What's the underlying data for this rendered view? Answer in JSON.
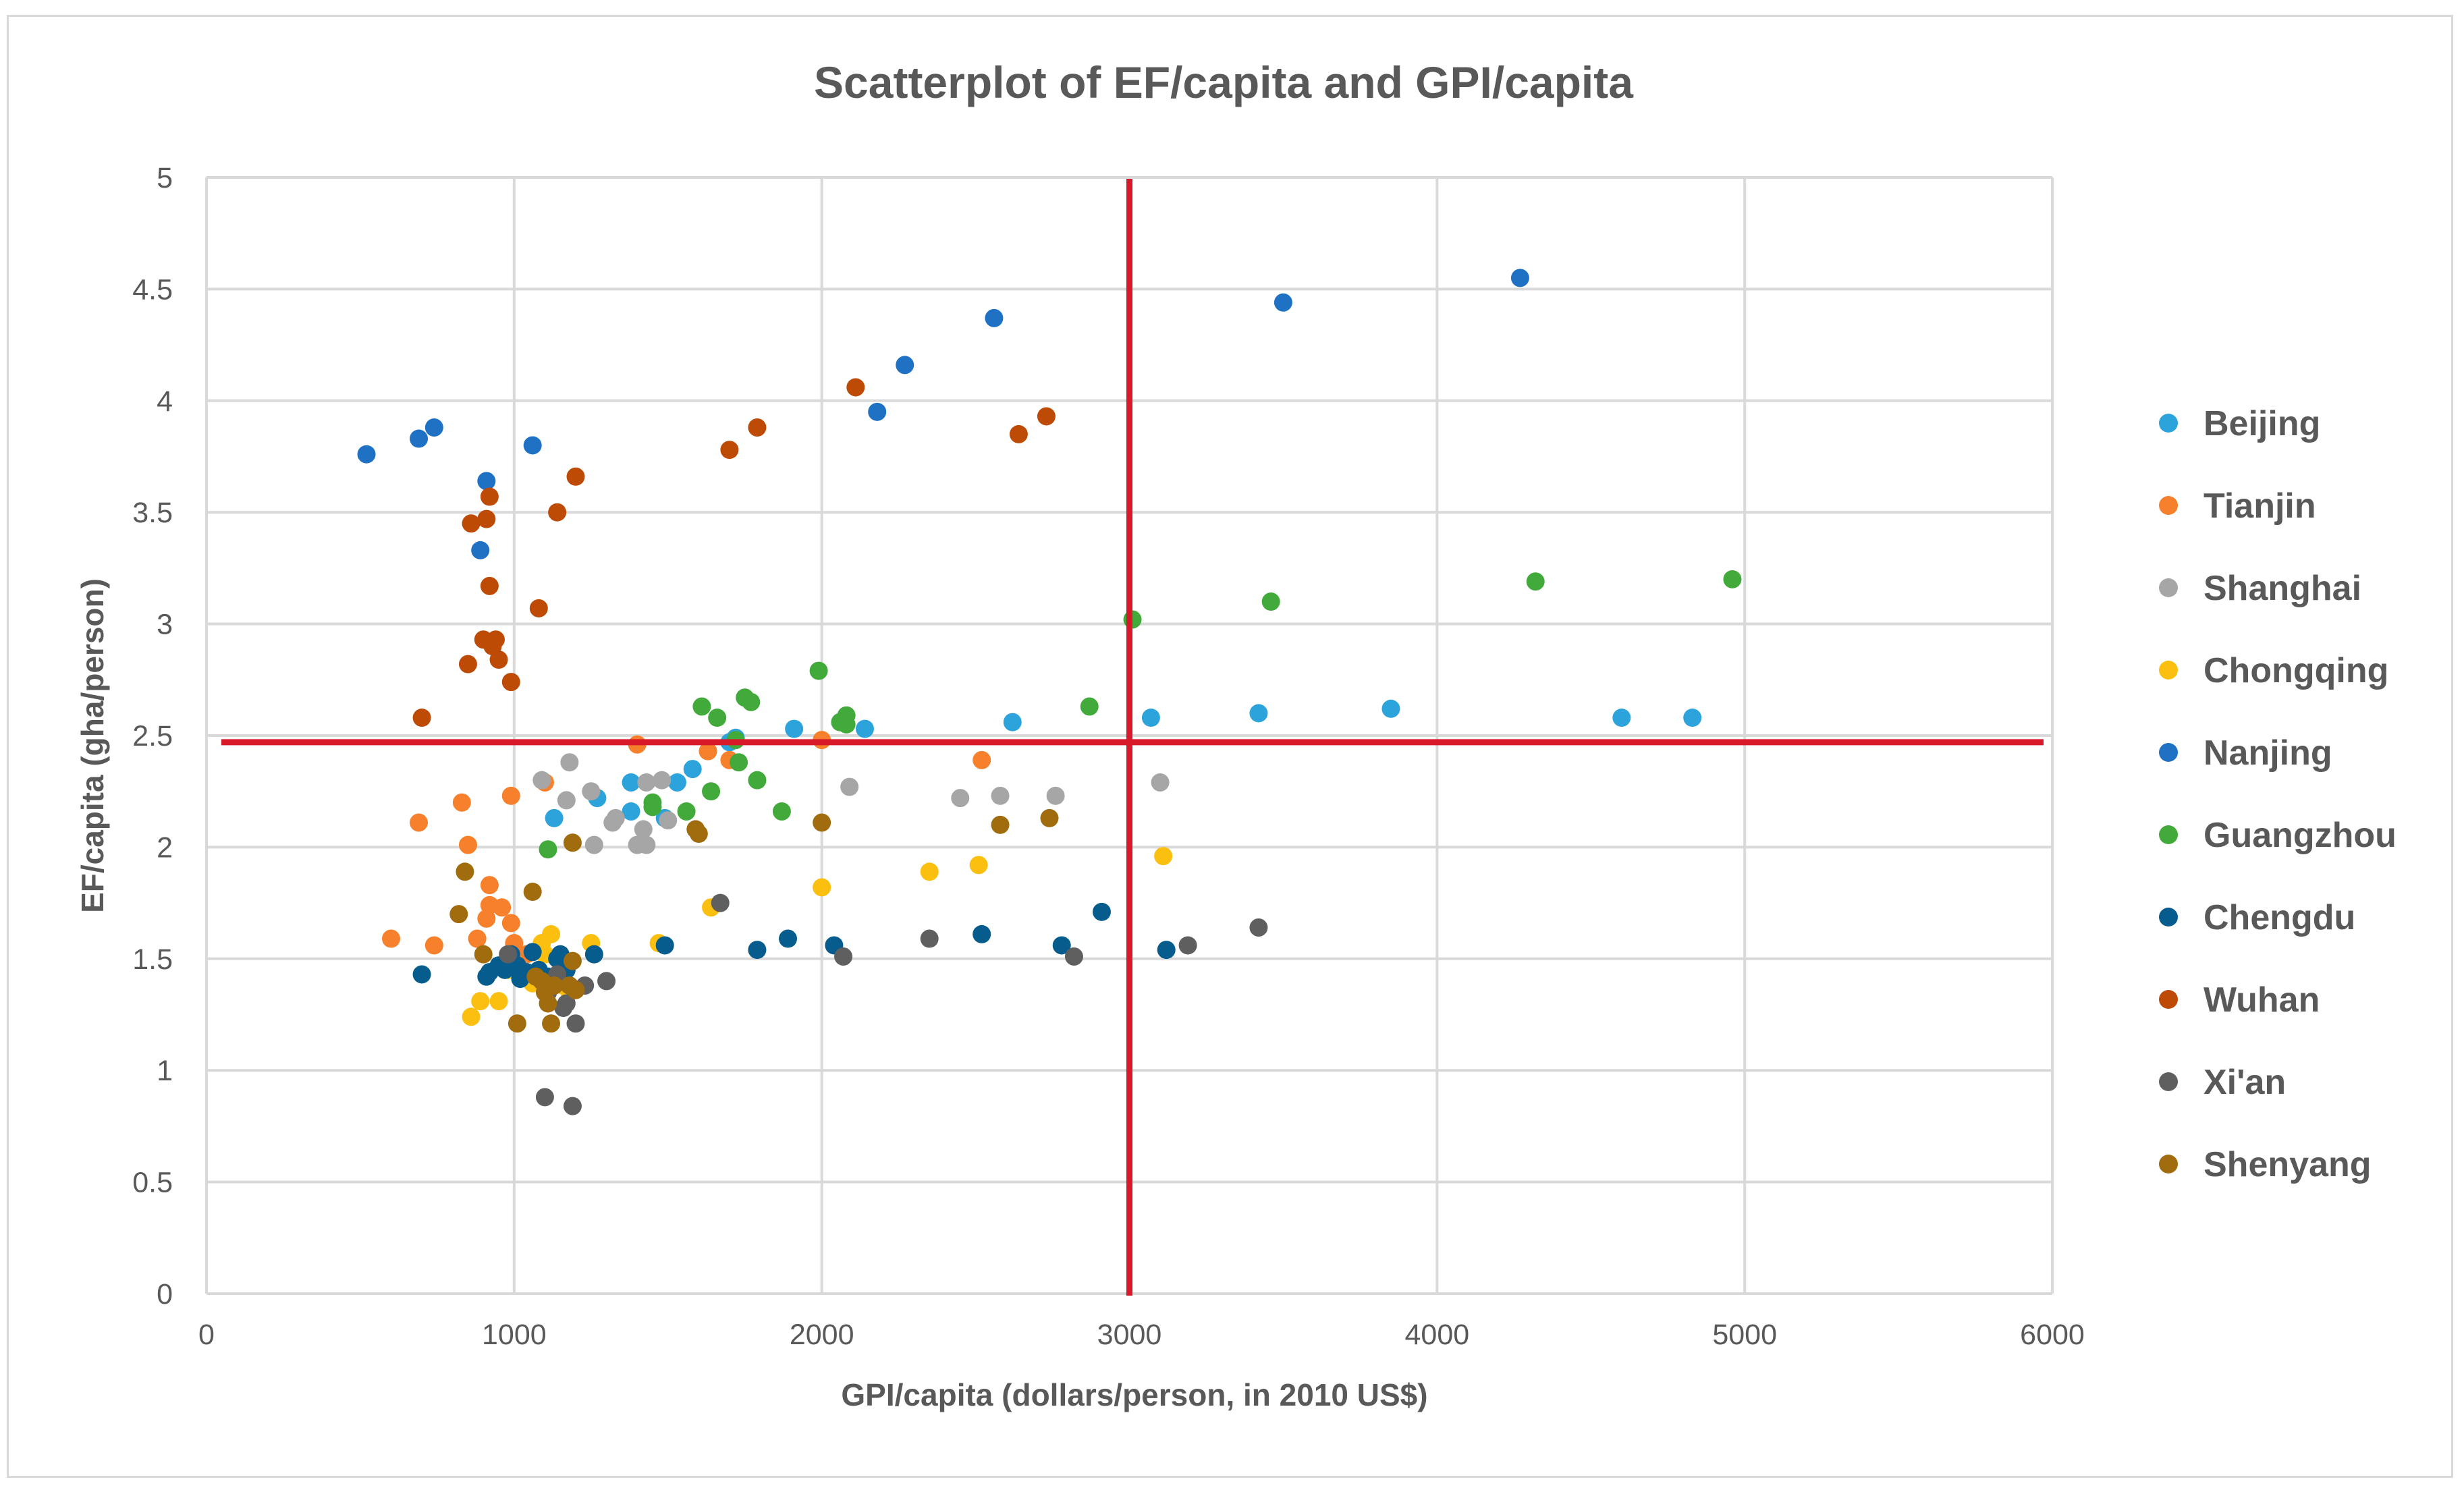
{
  "chart_data": {
    "type": "scatter",
    "title": "Scatterplot of EF/capita and GPI/capita",
    "xlabel": "GPI/capita  (dollars/person,  in 2010 US$)",
    "ylabel": "EF/capita (gha/person)",
    "xlim": [
      0,
      6000
    ],
    "ylim": [
      0,
      5
    ],
    "x_ticks": [
      "0",
      "1000",
      "2000",
      "3000",
      "4000",
      "5000",
      "6000"
    ],
    "y_ticks": [
      "0",
      "0.5",
      "1",
      "1.5",
      "2",
      "2.5",
      "3",
      "3.5",
      "4",
      "4.5",
      "5"
    ],
    "grid": true,
    "legend_position": "right",
    "reference_lines": [
      {
        "orientation": "vertical",
        "value": 3000,
        "color": "#d7192a"
      },
      {
        "orientation": "horizontal",
        "value": 2.47,
        "color": "#d7192a"
      }
    ],
    "series": [
      {
        "name": "Beijing",
        "color": "#2da3dc",
        "points": [
          [
            1130,
            2.13
          ],
          [
            1270,
            2.22
          ],
          [
            1380,
            2.16
          ],
          [
            1380,
            2.29
          ],
          [
            1490,
            2.13
          ],
          [
            1530,
            2.29
          ],
          [
            1580,
            2.35
          ],
          [
            1700,
            2.47
          ],
          [
            1720,
            2.49
          ],
          [
            1910,
            2.53
          ],
          [
            2060,
            2.56
          ],
          [
            2140,
            2.53
          ],
          [
            2620,
            2.56
          ],
          [
            3070,
            2.58
          ],
          [
            3420,
            2.6
          ],
          [
            3850,
            2.62
          ],
          [
            4600,
            2.58
          ],
          [
            4830,
            2.58
          ]
        ]
      },
      {
        "name": "Tianjin",
        "color": "#f6802c",
        "points": [
          [
            600,
            1.59
          ],
          [
            690,
            2.11
          ],
          [
            740,
            1.56
          ],
          [
            830,
            2.2
          ],
          [
            850,
            2.01
          ],
          [
            880,
            1.59
          ],
          [
            910,
            1.68
          ],
          [
            920,
            1.74
          ],
          [
            920,
            1.83
          ],
          [
            960,
            1.73
          ],
          [
            990,
            1.66
          ],
          [
            990,
            2.23
          ],
          [
            1000,
            1.57
          ],
          [
            1040,
            1.52
          ],
          [
            1100,
            2.29
          ],
          [
            1400,
            2.46
          ],
          [
            1630,
            2.43
          ],
          [
            1700,
            2.39
          ],
          [
            2000,
            2.48
          ],
          [
            2520,
            2.39
          ]
        ]
      },
      {
        "name": "Shanghai",
        "color": "#a6a6a6",
        "points": [
          [
            1090,
            2.3
          ],
          [
            1170,
            2.21
          ],
          [
            1180,
            2.38
          ],
          [
            1250,
            2.25
          ],
          [
            1260,
            2.01
          ],
          [
            1320,
            2.11
          ],
          [
            1330,
            2.13
          ],
          [
            1400,
            2.01
          ],
          [
            1420,
            2.08
          ],
          [
            1430,
            2.29
          ],
          [
            1430,
            2.01
          ],
          [
            1480,
            2.3
          ],
          [
            1500,
            2.12
          ],
          [
            2090,
            2.27
          ],
          [
            2450,
            2.22
          ],
          [
            2580,
            2.23
          ],
          [
            2760,
            2.23
          ],
          [
            3100,
            2.29
          ]
        ]
      },
      {
        "name": "Chongqing",
        "color": "#fbbf10",
        "points": [
          [
            860,
            1.24
          ],
          [
            890,
            1.31
          ],
          [
            950,
            1.31
          ],
          [
            980,
            1.45
          ],
          [
            1060,
            1.39
          ],
          [
            1090,
            1.57
          ],
          [
            1100,
            1.52
          ],
          [
            1120,
            1.61
          ],
          [
            1140,
            1.5
          ],
          [
            1160,
            1.38
          ],
          [
            1180,
            1.35
          ],
          [
            1250,
            1.57
          ],
          [
            1470,
            1.57
          ],
          [
            1640,
            1.73
          ],
          [
            2000,
            1.82
          ],
          [
            2350,
            1.89
          ],
          [
            2510,
            1.92
          ],
          [
            3110,
            1.96
          ]
        ]
      },
      {
        "name": "Nanjing",
        "color": "#1f71c4",
        "points": [
          [
            520,
            3.76
          ],
          [
            690,
            3.83
          ],
          [
            740,
            3.88
          ],
          [
            890,
            3.33
          ],
          [
            910,
            3.64
          ],
          [
            1060,
            3.8
          ],
          [
            2180,
            3.95
          ],
          [
            2270,
            4.16
          ],
          [
            2560,
            4.37
          ],
          [
            3500,
            4.44
          ],
          [
            4270,
            4.55
          ]
        ]
      },
      {
        "name": "Guangzhou",
        "color": "#41aa3b",
        "points": [
          [
            1110,
            1.99
          ],
          [
            1450,
            2.18
          ],
          [
            1450,
            2.2
          ],
          [
            1560,
            2.16
          ],
          [
            1610,
            2.63
          ],
          [
            1640,
            2.25
          ],
          [
            1660,
            2.58
          ],
          [
            1720,
            2.48
          ],
          [
            1730,
            2.38
          ],
          [
            1750,
            2.67
          ],
          [
            1770,
            2.65
          ],
          [
            1790,
            2.3
          ],
          [
            1870,
            2.16
          ],
          [
            1990,
            2.79
          ],
          [
            2060,
            2.56
          ],
          [
            2080,
            2.55
          ],
          [
            2080,
            2.59
          ],
          [
            2870,
            2.63
          ],
          [
            3010,
            3.02
          ],
          [
            3460,
            3.1
          ],
          [
            4320,
            3.19
          ],
          [
            4960,
            3.2
          ]
        ]
      },
      {
        "name": "Chengdu",
        "color": "#065c8d",
        "points": [
          [
            700,
            1.43
          ],
          [
            910,
            1.42
          ],
          [
            920,
            1.44
          ],
          [
            950,
            1.47
          ],
          [
            970,
            1.45
          ],
          [
            990,
            1.52
          ],
          [
            1010,
            1.47
          ],
          [
            1020,
            1.41
          ],
          [
            1040,
            1.44
          ],
          [
            1060,
            1.53
          ],
          [
            1080,
            1.45
          ],
          [
            1110,
            1.42
          ],
          [
            1140,
            1.5
          ],
          [
            1150,
            1.52
          ],
          [
            1170,
            1.45
          ],
          [
            1260,
            1.52
          ],
          [
            1490,
            1.56
          ],
          [
            1790,
            1.54
          ],
          [
            1890,
            1.59
          ],
          [
            2040,
            1.56
          ],
          [
            2520,
            1.61
          ],
          [
            2780,
            1.56
          ],
          [
            2910,
            1.71
          ],
          [
            3120,
            1.54
          ]
        ]
      },
      {
        "name": "Wuhan",
        "color": "#bd4a05",
        "points": [
          [
            700,
            2.58
          ],
          [
            850,
            2.82
          ],
          [
            860,
            3.45
          ],
          [
            900,
            2.93
          ],
          [
            910,
            3.47
          ],
          [
            920,
            3.57
          ],
          [
            920,
            3.17
          ],
          [
            930,
            2.9
          ],
          [
            940,
            2.93
          ],
          [
            950,
            2.84
          ],
          [
            990,
            2.74
          ],
          [
            1080,
            3.07
          ],
          [
            1140,
            3.5
          ],
          [
            1200,
            3.66
          ],
          [
            1700,
            3.78
          ],
          [
            1790,
            3.88
          ],
          [
            2110,
            4.06
          ],
          [
            2640,
            3.85
          ],
          [
            2730,
            3.93
          ]
        ]
      },
      {
        "name": "Xi'an",
        "color": "#5f5f5f",
        "points": [
          [
            980,
            1.52
          ],
          [
            1100,
            0.88
          ],
          [
            1110,
            1.35
          ],
          [
            1140,
            1.43
          ],
          [
            1160,
            1.28
          ],
          [
            1170,
            1.3
          ],
          [
            1190,
            0.84
          ],
          [
            1200,
            1.21
          ],
          [
            1230,
            1.38
          ],
          [
            1300,
            1.4
          ],
          [
            1670,
            1.75
          ],
          [
            2070,
            1.51
          ],
          [
            2350,
            1.59
          ],
          [
            2820,
            1.51
          ],
          [
            3190,
            1.56
          ],
          [
            3420,
            1.64
          ]
        ]
      },
      {
        "name": "Shenyang",
        "color": "#a06c0e",
        "points": [
          [
            820,
            1.7
          ],
          [
            840,
            1.89
          ],
          [
            900,
            1.52
          ],
          [
            1010,
            1.21
          ],
          [
            1060,
            1.8
          ],
          [
            1070,
            1.42
          ],
          [
            1090,
            1.4
          ],
          [
            1100,
            1.35
          ],
          [
            1110,
            1.3
          ],
          [
            1120,
            1.21
          ],
          [
            1130,
            1.38
          ],
          [
            1180,
            1.38
          ],
          [
            1190,
            2.02
          ],
          [
            1190,
            1.49
          ],
          [
            1200,
            1.36
          ],
          [
            1590,
            2.08
          ],
          [
            1600,
            2.06
          ],
          [
            2000,
            2.11
          ],
          [
            2580,
            2.1
          ],
          [
            2740,
            2.13
          ]
        ]
      }
    ]
  }
}
